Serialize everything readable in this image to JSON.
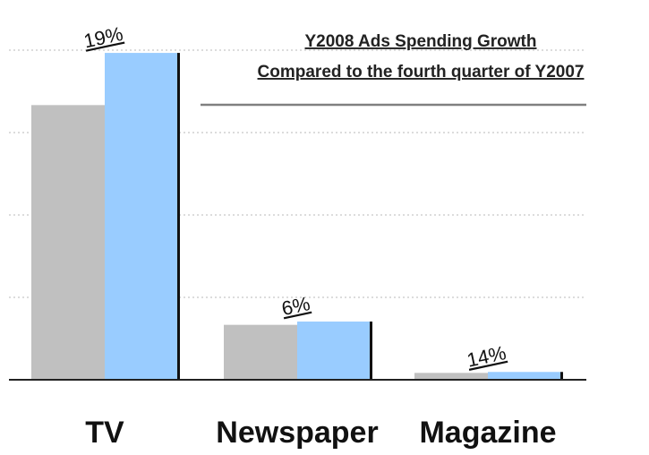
{
  "chart_data": {
    "type": "bar",
    "title": "Y2008 Ads Spending Growth",
    "subtitle": "Compared to the fourth quarter of Y2007",
    "categories": [
      "TV",
      "Newspaper",
      "Magazine"
    ],
    "series": [
      {
        "values": [
          100,
          20,
          2.5
        ]
      },
      {
        "values": [
          119,
          21.2,
          2.85
        ]
      }
    ],
    "growth_labels": [
      "19%",
      "6%",
      "14%"
    ],
    "ylim": [
      0,
      120
    ],
    "grid": true,
    "legend": "none",
    "colors": {
      "series_0": "#c0c0c0",
      "series_1": "#99ccff",
      "gridline": "#b8b8b8",
      "axis": "#222222",
      "title_rule": "#808080"
    }
  }
}
